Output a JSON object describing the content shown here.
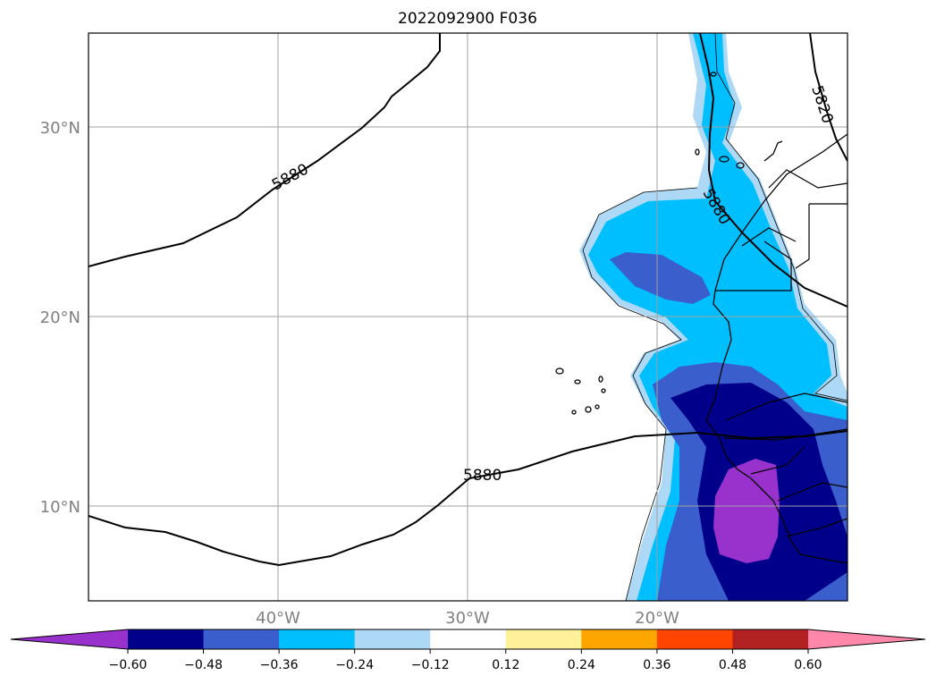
{
  "title": "2022092900 F036",
  "map": {
    "lat_labels": [
      "30°N",
      "20°N",
      "10°N"
    ],
    "lon_labels": [
      "40°W",
      "30°W",
      "20°W"
    ],
    "extent": {
      "lon_min": -50,
      "lon_max": -10,
      "lat_min": 5,
      "lat_max": 35
    },
    "gridlines": true
  },
  "contours": {
    "labels": [
      "5880",
      "5880",
      "5880",
      "5820"
    ]
  },
  "colorbar": {
    "ticks": [
      "−0.60",
      "−0.48",
      "−0.36",
      "−0.24",
      "−0.12",
      "0.12",
      "0.24",
      "0.36",
      "0.48",
      "0.60"
    ],
    "colors": [
      "#9932cc",
      "#00008b",
      "#3a5fcd",
      "#00bfff",
      "#add8f6",
      "#ffffff",
      "#fff09a",
      "#ffa500",
      "#ff4500",
      "#b22222",
      "#ff88aa"
    ],
    "extend": "both"
  },
  "fill_colors": {
    "purple": "#9932cc",
    "navy": "#00008b",
    "blue": "#3a5fcd",
    "sky": "#00bfff",
    "light": "#add8f6"
  }
}
